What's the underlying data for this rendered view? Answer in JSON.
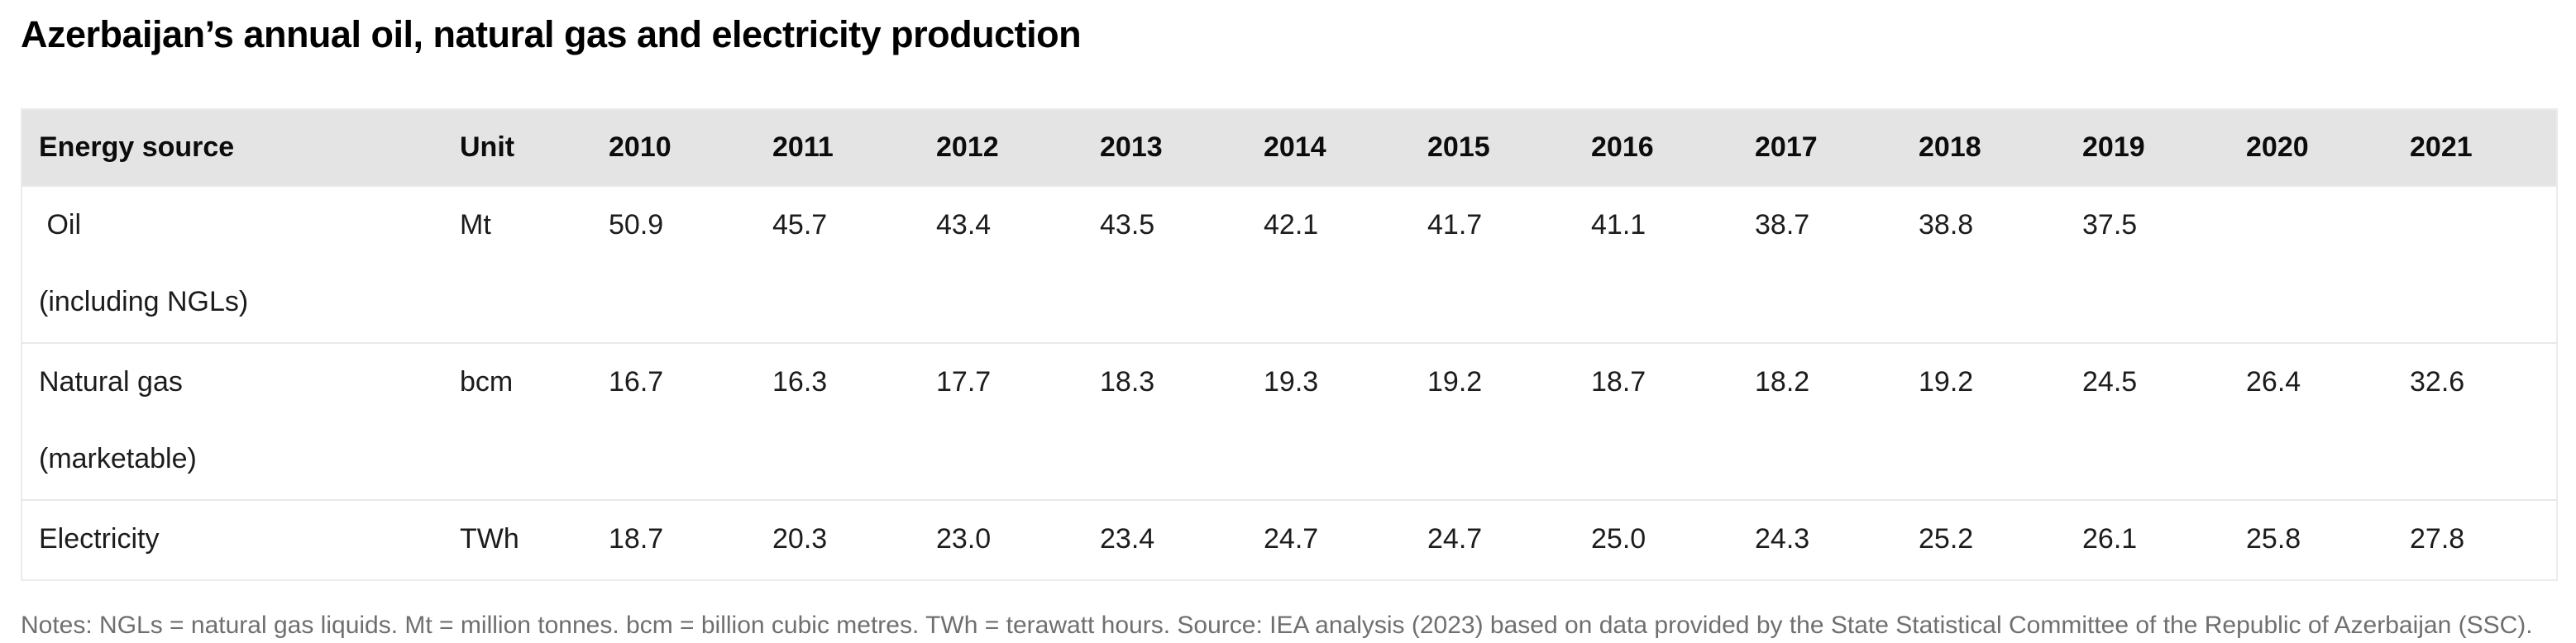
{
  "page": {
    "title": "Azerbaijan’s annual oil, natural gas and electricity production",
    "notes": "Notes: NGLs = natural gas liquids. Mt = million tonnes. bcm = billion cubic metres. TWh = terawatt hours. Source: IEA analysis (2023) based on data provided by the State Statistical Committee of the Republic of Azerbaijan (SSC)."
  },
  "colors": {
    "header_bg": "#e4e4e4",
    "row_border": "#e9e9e9",
    "table_border": "#ececec",
    "body_text": "#1c1c1c",
    "notes_text": "#6f6f6f"
  },
  "table": {
    "columns": [
      "Energy source",
      "Unit",
      "2010",
      "2011",
      "2012",
      "2013",
      "2014",
      "2015",
      "2016",
      "2017",
      "2018",
      "2019",
      "2020",
      "2021"
    ],
    "rows": [
      {
        "id": "oil",
        "name_line1": " Oil",
        "name_line2": "(including NGLs)",
        "unit": "Mt",
        "values": [
          "50.9",
          "45.7",
          "43.4",
          "43.5",
          "42.1",
          "41.7",
          "41.1",
          "38.7",
          "38.8",
          "37.5",
          "",
          ""
        ]
      },
      {
        "id": "natural-gas",
        "name_line1": "Natural gas",
        "name_line2": "(marketable)",
        "unit": "bcm",
        "values": [
          "16.7",
          "16.3",
          "17.7",
          "18.3",
          "19.3",
          "19.2",
          "18.7",
          "18.2",
          "19.2",
          "24.5",
          "26.4",
          "32.6"
        ]
      },
      {
        "id": "electricity",
        "name_line1": "Electricity",
        "name_line2": "",
        "unit": "TWh",
        "values": [
          "18.7",
          "20.3",
          "23.0",
          "23.4",
          "24.7",
          "24.7",
          "25.0",
          "24.3",
          "25.2",
          "26.1",
          "25.8",
          "27.8"
        ]
      }
    ]
  },
  "chart_data": {
    "type": "table",
    "title": "Azerbaijan’s annual oil, natural gas and electricity production",
    "categories": [
      "2010",
      "2011",
      "2012",
      "2013",
      "2014",
      "2015",
      "2016",
      "2017",
      "2018",
      "2019",
      "2020",
      "2021"
    ],
    "series": [
      {
        "name": "Oil (including NGLs)",
        "unit": "Mt",
        "values": [
          50.9,
          45.7,
          43.4,
          43.5,
          42.1,
          41.7,
          41.1,
          38.7,
          38.8,
          37.5,
          null,
          null
        ]
      },
      {
        "name": "Natural gas (marketable)",
        "unit": "bcm",
        "values": [
          16.7,
          16.3,
          17.7,
          18.3,
          19.3,
          19.2,
          18.7,
          18.2,
          19.2,
          24.5,
          26.4,
          32.6
        ]
      },
      {
        "name": "Electricity",
        "unit": "TWh",
        "values": [
          18.7,
          20.3,
          23.0,
          23.4,
          24.7,
          24.7,
          25.0,
          24.3,
          25.2,
          26.1,
          25.8,
          27.8
        ]
      }
    ],
    "notes": "Notes: NGLs = natural gas liquids. Mt = million tonnes. bcm = billion cubic metres. TWh = terawatt hours. Source: IEA analysis (2023) based on data provided by the State Statistical Committee of the Republic of Azerbaijan (SSC)."
  }
}
